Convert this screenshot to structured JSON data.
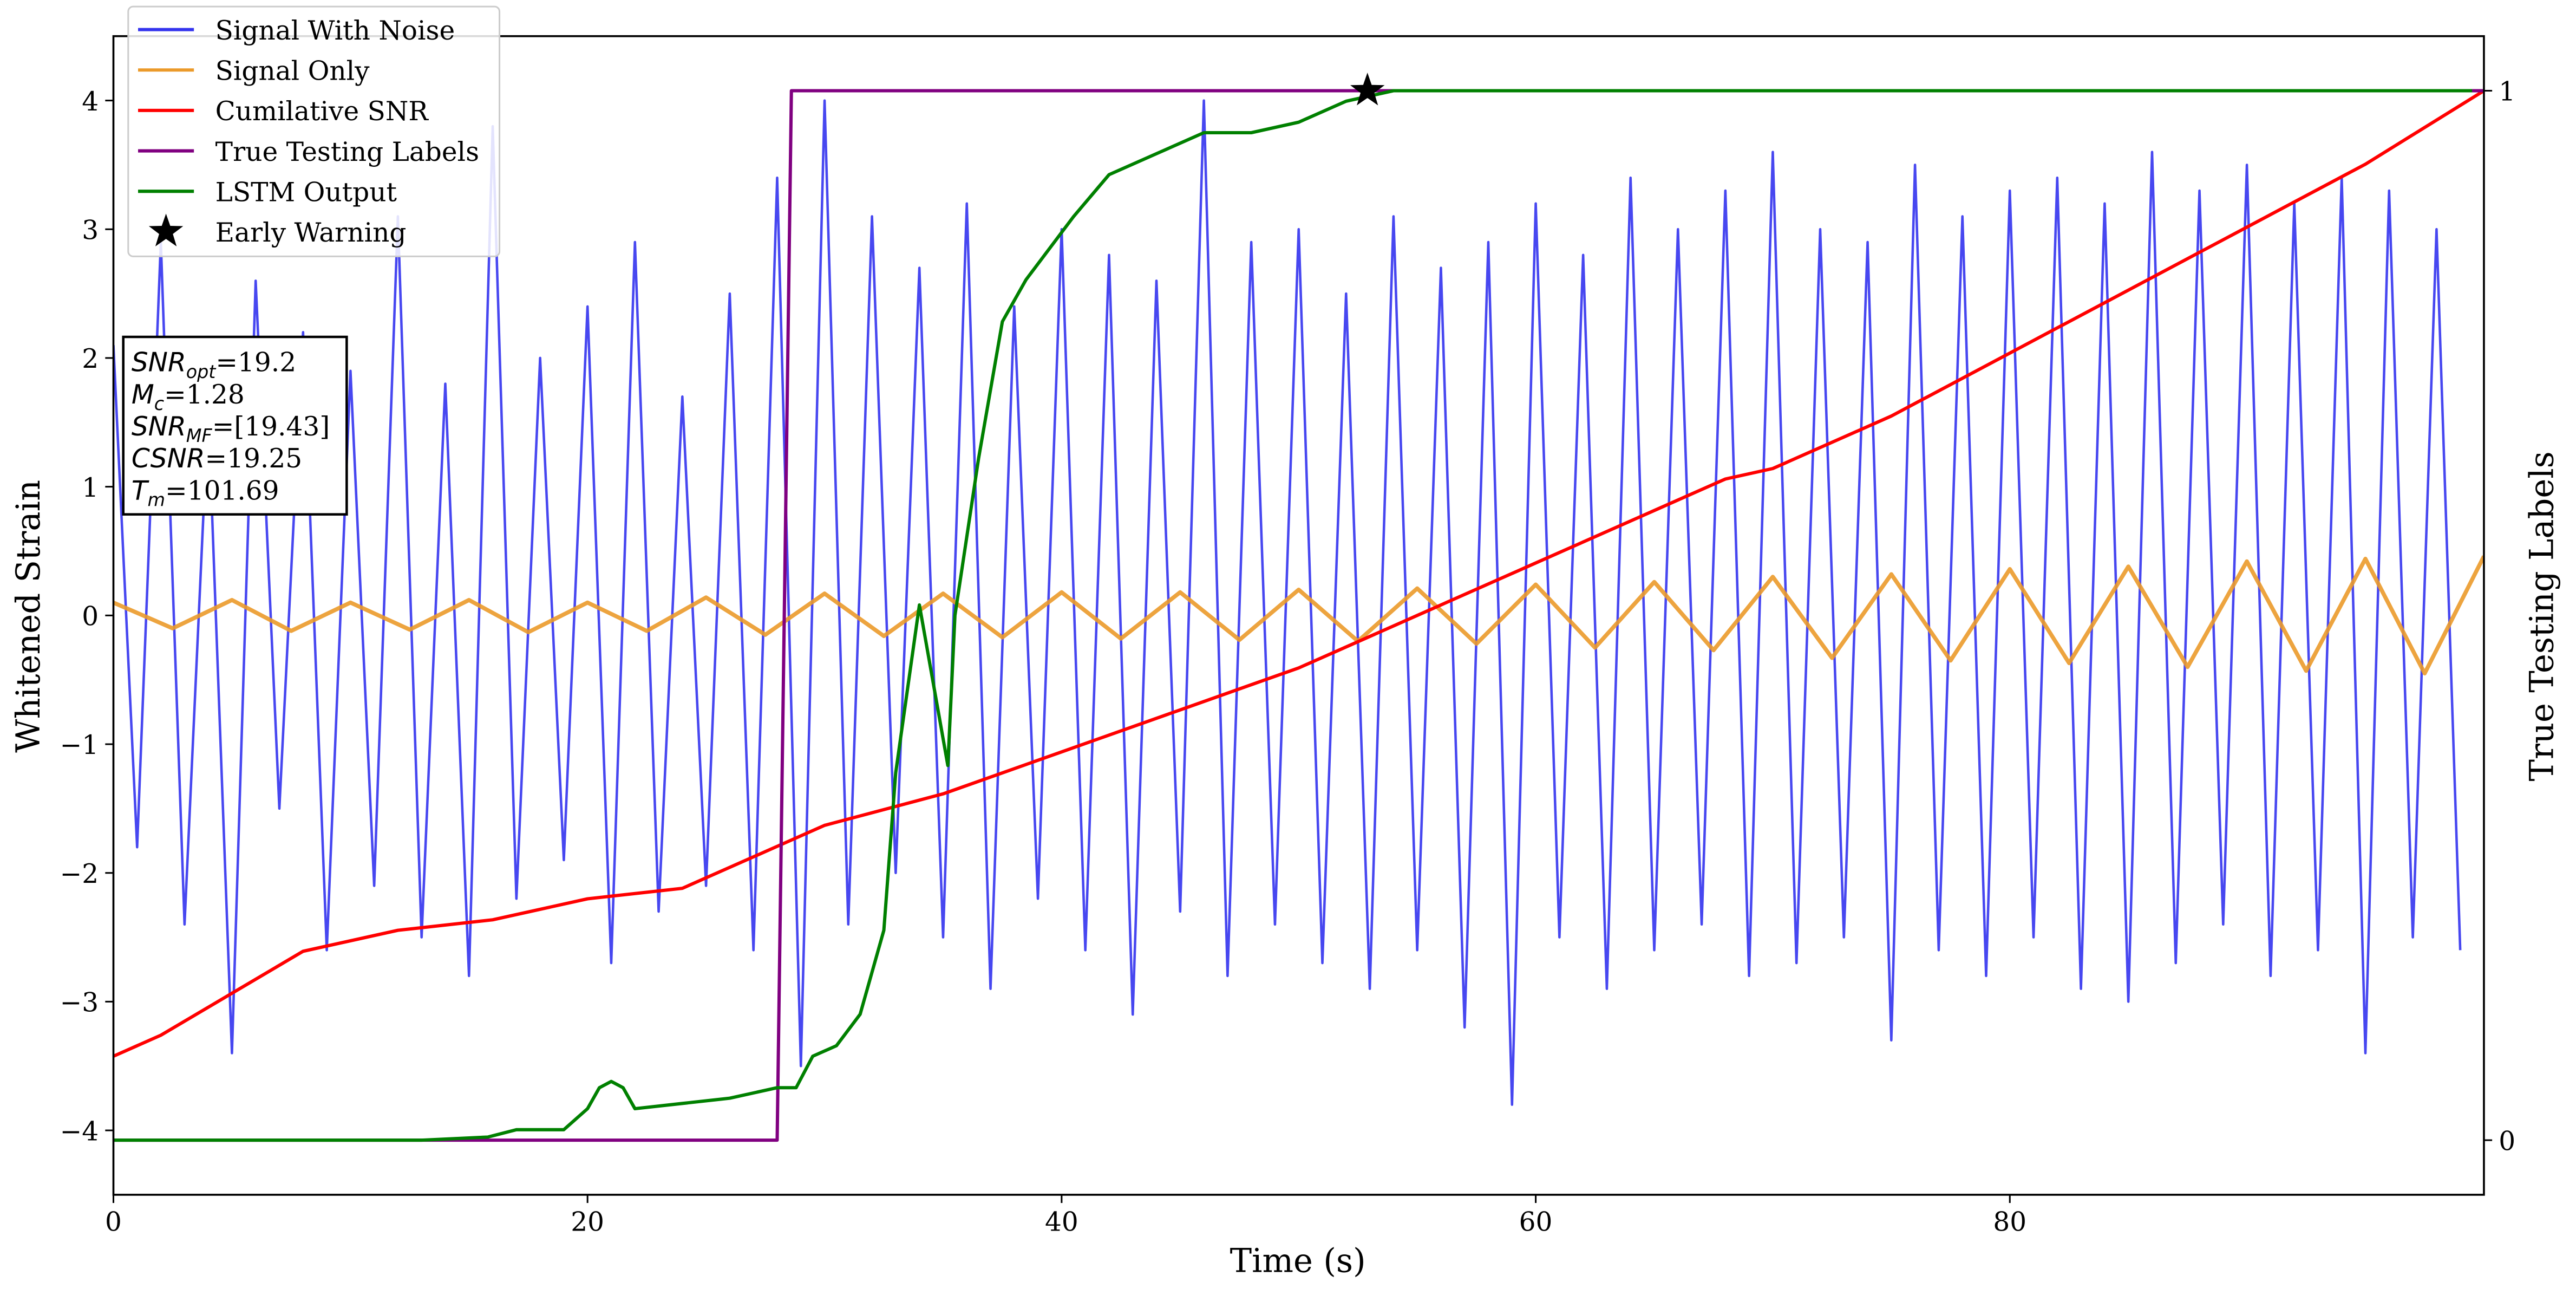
{
  "chart_data": {
    "type": "line",
    "xlabel": "Time (s)",
    "ylabel": "Whitened Strain",
    "y2label": "True Testing Labels",
    "xlim": [
      0,
      100
    ],
    "xticks": [
      0,
      20,
      40,
      60,
      80
    ],
    "ylim": [
      -4.5,
      4.5
    ],
    "yticks": [
      {
        "value": -4,
        "label": "−4"
      },
      {
        "value": -3,
        "label": "−3"
      },
      {
        "value": -2,
        "label": "−2"
      },
      {
        "value": -1,
        "label": "−1"
      },
      0,
      1,
      2,
      3,
      4
    ],
    "y2lim": [
      -0.052,
      1.052
    ],
    "y2ticks": [
      0,
      1
    ],
    "legend": "upper left",
    "series": [
      {
        "name": "Signal With Noise",
        "color": "#3333ee",
        "x": [
          0,
          1,
          2,
          3,
          4,
          5,
          6,
          7,
          8,
          9,
          10,
          11,
          12,
          13,
          14,
          15,
          16,
          17,
          18,
          19,
          20,
          21,
          22,
          23,
          24,
          25,
          26,
          27,
          28,
          29,
          30,
          31,
          32,
          33,
          34,
          35,
          36,
          37,
          38,
          39,
          40,
          41,
          42,
          43,
          44,
          45,
          46,
          47,
          48,
          49,
          50,
          51,
          52,
          53,
          54,
          55,
          56,
          57,
          58,
          59,
          60,
          61,
          62,
          63,
          64,
          65,
          66,
          67,
          68,
          69,
          70,
          71,
          72,
          73,
          74,
          75,
          76,
          77,
          78,
          79,
          80,
          81,
          82,
          83,
          84,
          85,
          86,
          87,
          88,
          89,
          90,
          91,
          92,
          93,
          94,
          95,
          96,
          97,
          98,
          99
        ],
        "values": [
          2.1,
          -1.8,
          2.9,
          -2.4,
          1.6,
          -3.4,
          2.6,
          -1.5,
          2.2,
          -2.6,
          1.9,
          -2.1,
          3.1,
          -2.5,
          1.8,
          -2.8,
          3.8,
          -2.2,
          2.0,
          -1.9,
          2.4,
          -2.7,
          2.9,
          -2.3,
          1.7,
          -2.1,
          2.5,
          -2.6,
          3.4,
          -3.5,
          4.0,
          -2.4,
          3.1,
          -2.0,
          2.7,
          -2.5,
          3.2,
          -2.9,
          2.4,
          -2.2,
          3.0,
          -2.6,
          2.8,
          -3.1,
          2.6,
          -2.3,
          4.0,
          -2.8,
          2.9,
          -2.4,
          3.0,
          -2.7,
          2.5,
          -2.9,
          3.1,
          -2.6,
          2.7,
          -3.2,
          2.9,
          -3.8,
          3.2,
          -2.5,
          2.8,
          -2.9,
          3.4,
          -2.6,
          3.0,
          -2.4,
          3.3,
          -2.8,
          3.6,
          -2.7,
          3.0,
          -2.5,
          2.9,
          -3.3,
          3.5,
          -2.6,
          3.1,
          -2.8,
          3.3,
          -2.5,
          3.4,
          -2.9,
          3.2,
          -3.0,
          3.6,
          -2.7,
          3.3,
          -2.4,
          3.5,
          -2.8,
          3.2,
          -2.6,
          3.4,
          -3.4,
          3.3,
          -2.5,
          3.0,
          -2.6
        ]
      },
      {
        "name": "Signal Only",
        "color": "#eb9a2a",
        "x": [
          0,
          2.5,
          5,
          7.5,
          10,
          12.5,
          15,
          17.5,
          20,
          22.5,
          25,
          27.5,
          30,
          32.5,
          35,
          37.5,
          40,
          42.5,
          45,
          47.5,
          50,
          52.5,
          55,
          57.5,
          60,
          62.5,
          65,
          67.5,
          70,
          72.5,
          75,
          77.5,
          80,
          82.5,
          85,
          87.5,
          90,
          92.5,
          95,
          97.5,
          100
        ],
        "values": [
          0.1,
          -0.1,
          0.12,
          -0.12,
          0.1,
          -0.11,
          0.12,
          -0.13,
          0.1,
          -0.12,
          0.14,
          -0.15,
          0.17,
          -0.16,
          0.17,
          -0.17,
          0.18,
          -0.18,
          0.18,
          -0.19,
          0.2,
          -0.2,
          0.21,
          -0.22,
          0.24,
          -0.25,
          0.26,
          -0.27,
          0.3,
          -0.33,
          0.32,
          -0.35,
          0.36,
          -0.37,
          0.38,
          -0.4,
          0.42,
          -0.43,
          0.44,
          -0.45,
          0.46
        ]
      },
      {
        "name": "Cumilative SNR",
        "color": "#ff0000",
        "axis": "y2",
        "x": [
          0,
          2,
          5,
          8,
          10,
          12,
          16,
          20,
          24,
          26,
          28,
          30,
          35,
          40,
          45,
          50,
          55,
          60,
          65,
          68,
          70,
          75,
          80,
          85,
          90,
          95,
          100
        ],
        "values": [
          0.08,
          0.1,
          0.14,
          0.18,
          0.19,
          0.2,
          0.21,
          0.23,
          0.24,
          0.26,
          0.28,
          0.3,
          0.33,
          0.37,
          0.41,
          0.45,
          0.5,
          0.55,
          0.6,
          0.63,
          0.64,
          0.69,
          0.75,
          0.81,
          0.87,
          0.93,
          1.0
        ]
      },
      {
        "name": "True Testing Labels",
        "color": "#800080",
        "axis": "y2",
        "x": [
          0,
          28,
          28.6,
          100
        ],
        "values": [
          0,
          0,
          1,
          1
        ]
      },
      {
        "name": "LSTM Output",
        "color": "#008000",
        "axis": "y2",
        "x": [
          0,
          13,
          15.8,
          17,
          19,
          20,
          20.5,
          21,
          21.5,
          22,
          24,
          26,
          28,
          28.8,
          29.5,
          30.5,
          31.5,
          32.5,
          33,
          34,
          35.2,
          35.5,
          36.5,
          37.5,
          38.5,
          39.5,
          40.5,
          42,
          44,
          46,
          48,
          50,
          52,
          54,
          60,
          99.5
        ],
        "values": [
          0,
          0,
          0.003,
          0.01,
          0.01,
          0.03,
          0.05,
          0.056,
          0.05,
          0.03,
          0.035,
          0.04,
          0.05,
          0.05,
          0.08,
          0.09,
          0.12,
          0.2,
          0.35,
          0.51,
          0.357,
          0.5,
          0.65,
          0.78,
          0.82,
          0.85,
          0.88,
          0.92,
          0.94,
          0.96,
          0.96,
          0.97,
          0.99,
          1,
          1,
          1
        ]
      },
      {
        "name": "Early Warning",
        "color": "#000000",
        "axis": "y2",
        "marker": "star",
        "x": [
          52.9
        ],
        "values": [
          1
        ]
      }
    ],
    "annotation": [
      {
        "main": "SNR",
        "sub": "opt",
        "rest": "=19.2"
      },
      {
        "main": "M",
        "sub": "c",
        "rest": "=1.28"
      },
      {
        "main": "SNR",
        "sub": "MF",
        "rest": "=[19.43]"
      },
      {
        "main": "CSNR",
        "rest": "=19.25"
      },
      {
        "main": "T",
        "sub": "m",
        "rest": "=101.69"
      }
    ]
  }
}
